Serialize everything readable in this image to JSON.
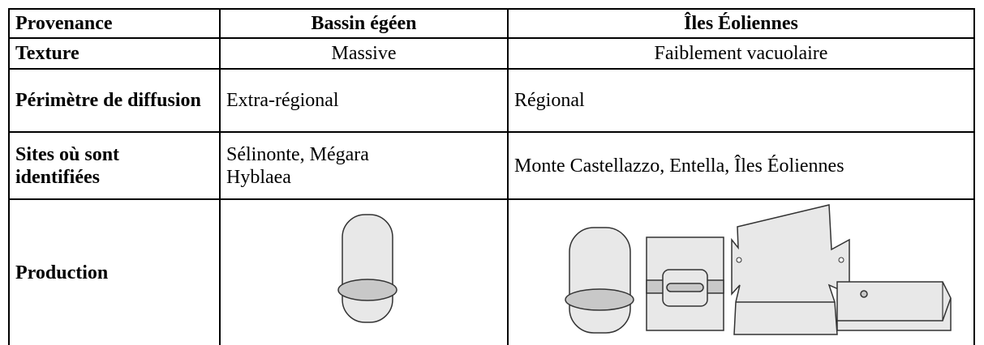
{
  "table": {
    "header": [
      "Provenance",
      "Bassin égéen",
      "Îles Éoliennes"
    ],
    "rows": [
      [
        "Texture",
        "Massive",
        "Faiblement vacuolaire"
      ],
      [
        "Périmètre de diffusion",
        "Extra-régional",
        "Régional"
      ],
      [
        "Sites où sont identifiées",
        "Sélinonte, Mégara Hyblaea",
        "Monte Castellazzo, Entella, Îles Éoliennes"
      ],
      [
        "Production"
      ]
    ]
  }
}
